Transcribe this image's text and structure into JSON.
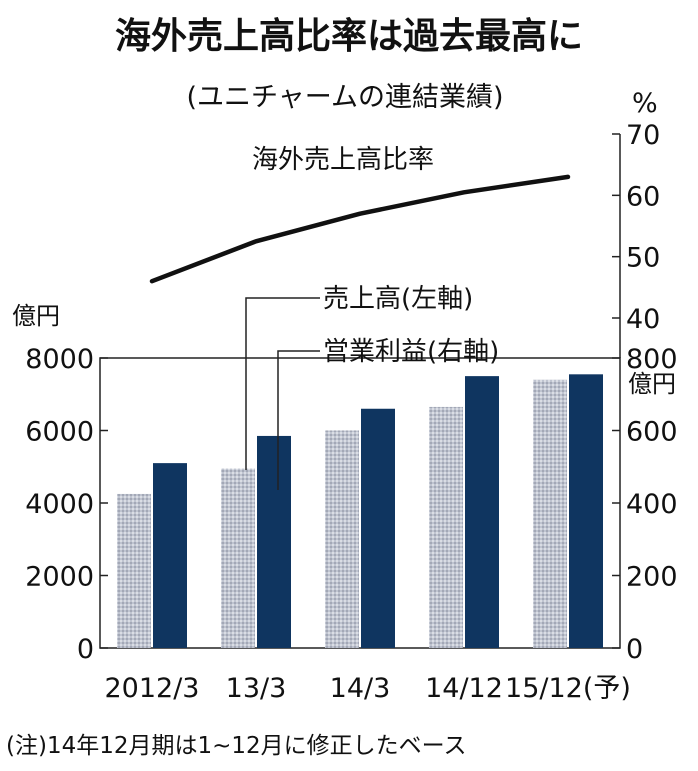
{
  "chart_data": {
    "type": "bar",
    "title": "海外売上高比率は過去最高に",
    "subtitle": "(ユニチャームの連結業績)",
    "categories": [
      "2012/3",
      "13/3",
      "14/3",
      "14/12",
      "15/12(予)"
    ],
    "series": [
      {
        "name": "売上高(左軸)",
        "axis": "left",
        "values": [
          4250,
          4950,
          6000,
          6650,
          7400
        ],
        "color": "#c5cad6"
      },
      {
        "name": "営業利益(右軸)",
        "axis": "right",
        "values": [
          510,
          585,
          660,
          750,
          755
        ],
        "color": "#0f3560"
      }
    ],
    "line_series": {
      "name": "海外売上高比率",
      "unit": "%",
      "values": [
        46,
        52.5,
        57,
        60.5,
        63
      ]
    },
    "y_left": {
      "unit": "億円",
      "ticks": [
        "0",
        "2000",
        "4000",
        "6000",
        "8000"
      ],
      "min": 0,
      "max": 8000
    },
    "y_right": {
      "unit": "億円",
      "ticks": [
        "0",
        "200",
        "400",
        "600",
        "800"
      ],
      "min": 0,
      "max": 800
    },
    "y_pct": {
      "unit": "%",
      "ticks": [
        "40",
        "50",
        "60",
        "70"
      ],
      "min": 40,
      "max": 70
    },
    "note": "(注)14年12月期は1~12月に修正したベース"
  }
}
